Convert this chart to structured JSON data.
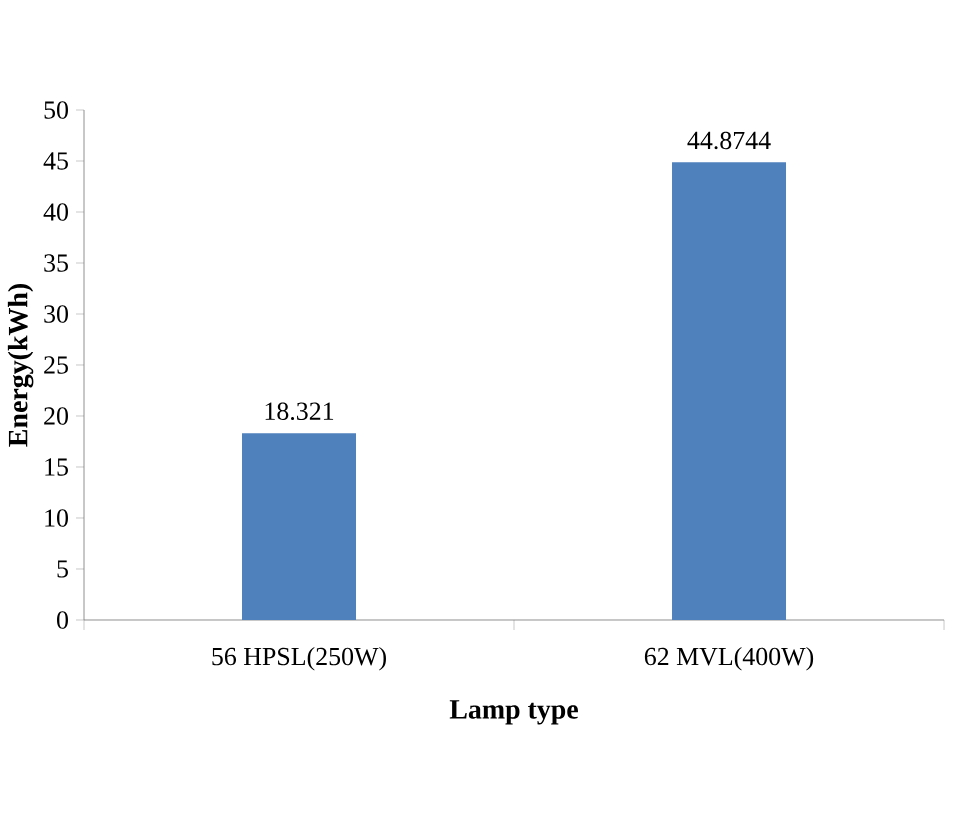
{
  "chart_data": {
    "type": "bar",
    "xlabel": "Lamp type",
    "ylabel": "Energy(kWh)",
    "categories": [
      "56 HPSL(250W)",
      "62 MVL(400W)"
    ],
    "values": [
      18.321,
      44.8744
    ],
    "value_labels": [
      "18.321",
      "44.8744"
    ],
    "color": "#4f81bd",
    "ylim": [
      0,
      50
    ],
    "yticks": [
      0,
      5,
      10,
      15,
      20,
      25,
      30,
      35,
      40,
      45,
      50
    ],
    "grid": false
  }
}
